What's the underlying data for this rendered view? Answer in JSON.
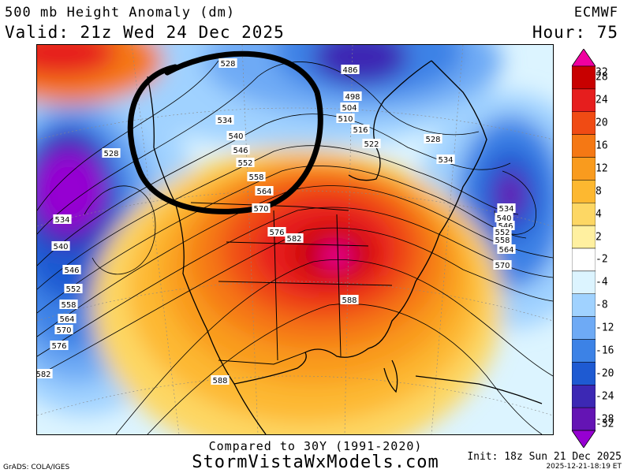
{
  "header": {
    "title": "500 mb Height Anomaly (dm)",
    "valid": "Valid: 21z Wed 24 Dec 2025",
    "model": "ECMWF",
    "hour": "Hour: 75"
  },
  "colorbar": {
    "levels": [
      "32",
      "28",
      "24",
      "20",
      "16",
      "12",
      "8",
      "4",
      "2",
      "-2",
      "-4",
      "-8",
      "-12",
      "-16",
      "-20",
      "-24",
      "-28",
      "-32"
    ],
    "colors": [
      "#f000a0",
      "#c80000",
      "#e61e1e",
      "#f04b14",
      "#f57814",
      "#f99b1e",
      "#fdb830",
      "#fdd764",
      "#fff0a0",
      "#ffffff",
      "#dcf4ff",
      "#a0d2ff",
      "#6eaaf5",
      "#3c82e6",
      "#1e5ad2",
      "#3c28b4",
      "#6414b4",
      "#9600d2"
    ]
  },
  "contour_labels": [
    "528",
    "486",
    "498",
    "504",
    "510",
    "516",
    "522",
    "528",
    "534",
    "534",
    "540",
    "546",
    "552",
    "558",
    "564",
    "570",
    "576",
    "582",
    "588",
    "588",
    "528",
    "534",
    "540",
    "546",
    "552",
    "558",
    "564",
    "570",
    "576",
    "582",
    "534",
    "540",
    "546",
    "552",
    "558",
    "564",
    "570"
  ],
  "footer": {
    "compared": "Compared to 30Y (1991-2020)",
    "site": "StormVistaWxModels.com",
    "credit": "GrADS: COLA/IGES",
    "init": "Init: 18z Sun 21 Dec 2025",
    "stamp": "2025-12-21-18:19 ET"
  },
  "icons": {
    "annotation": "hand-drawn-circle"
  }
}
